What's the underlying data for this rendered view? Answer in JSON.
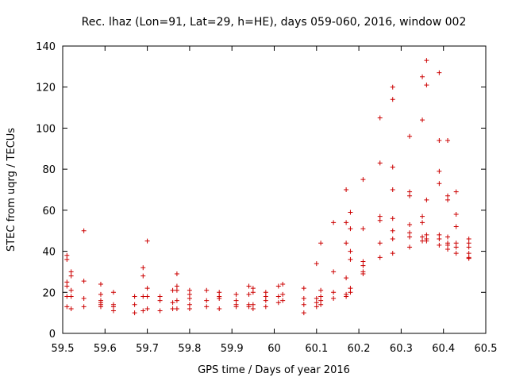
{
  "chart_data": {
    "type": "scatter",
    "title": "Rec. lhaz (Lon=91, Lat=29, h=HE), days 059-060, 2016, window 002",
    "xlabel": "GPS time / Days of year 2016",
    "ylabel": "STEC from uqrg / TECUs",
    "xlim": [
      59.5,
      60.5
    ],
    "ylim": [
      0,
      140
    ],
    "xticks": [
      59.5,
      59.6,
      59.7,
      59.8,
      59.9,
      60.0,
      60.1,
      60.2,
      60.3,
      60.4,
      60.5
    ],
    "xtick_labels": [
      "59.5",
      "59.6",
      "59.7",
      "59.8",
      "59.9",
      "60",
      "60.1",
      "60.2",
      "60.3",
      "60.4",
      "60.5"
    ],
    "yticks": [
      0,
      20,
      40,
      60,
      80,
      100,
      120,
      140
    ],
    "ytick_labels": [
      "0",
      "20",
      "40",
      "60",
      "80",
      "100",
      "120",
      "140"
    ],
    "grid": false,
    "legend": false,
    "marker": "+",
    "color": "#cc0000",
    "series": [
      {
        "points": [
          [
            59.51,
            38
          ],
          [
            59.51,
            36
          ],
          [
            59.51,
            25
          ],
          [
            59.51,
            23
          ],
          [
            59.51,
            18
          ],
          [
            59.51,
            13
          ],
          [
            59.52,
            30
          ],
          [
            59.52,
            28
          ],
          [
            59.52,
            21
          ],
          [
            59.52,
            18
          ],
          [
            59.52,
            12
          ],
          [
            59.55,
            50
          ],
          [
            59.55,
            25.5
          ],
          [
            59.55,
            17
          ],
          [
            59.55,
            13
          ],
          [
            59.59,
            24
          ],
          [
            59.59,
            19
          ],
          [
            59.59,
            16
          ],
          [
            59.59,
            15
          ],
          [
            59.59,
            14
          ],
          [
            59.59,
            13
          ],
          [
            59.62,
            20
          ],
          [
            59.62,
            14
          ],
          [
            59.62,
            13
          ],
          [
            59.62,
            11
          ],
          [
            59.67,
            18
          ],
          [
            59.67,
            14
          ],
          [
            59.67,
            10
          ],
          [
            59.69,
            32
          ],
          [
            59.69,
            28
          ],
          [
            59.69,
            18
          ],
          [
            59.69,
            11
          ],
          [
            59.7,
            45
          ],
          [
            59.7,
            22
          ],
          [
            59.7,
            18
          ],
          [
            59.7,
            12
          ],
          [
            59.73,
            18
          ],
          [
            59.73,
            16
          ],
          [
            59.73,
            11
          ],
          [
            59.76,
            21
          ],
          [
            59.76,
            15
          ],
          [
            59.76,
            12
          ],
          [
            59.77,
            29
          ],
          [
            59.77,
            23
          ],
          [
            59.77,
            21
          ],
          [
            59.77,
            16
          ],
          [
            59.77,
            12
          ],
          [
            59.8,
            21
          ],
          [
            59.8,
            19
          ],
          [
            59.8,
            17
          ],
          [
            59.8,
            14
          ],
          [
            59.8,
            12
          ],
          [
            59.84,
            21
          ],
          [
            59.84,
            16
          ],
          [
            59.84,
            13
          ],
          [
            59.87,
            20
          ],
          [
            59.87,
            18
          ],
          [
            59.87,
            17
          ],
          [
            59.87,
            12
          ],
          [
            59.91,
            19
          ],
          [
            59.91,
            16
          ],
          [
            59.91,
            14
          ],
          [
            59.91,
            13
          ],
          [
            59.94,
            23
          ],
          [
            59.94,
            19
          ],
          [
            59.94,
            14
          ],
          [
            59.94,
            13
          ],
          [
            59.95,
            22
          ],
          [
            59.95,
            20
          ],
          [
            59.95,
            14
          ],
          [
            59.95,
            12
          ],
          [
            59.98,
            20
          ],
          [
            59.98,
            18
          ],
          [
            59.98,
            16
          ],
          [
            59.98,
            13
          ],
          [
            60.01,
            23
          ],
          [
            60.01,
            18
          ],
          [
            60.01,
            15
          ],
          [
            60.02,
            24
          ],
          [
            60.02,
            19
          ],
          [
            60.02,
            16
          ],
          [
            60.07,
            22
          ],
          [
            60.07,
            17
          ],
          [
            60.07,
            14
          ],
          [
            60.07,
            10
          ],
          [
            60.1,
            34
          ],
          [
            60.1,
            17
          ],
          [
            60.1,
            15
          ],
          [
            60.1,
            13
          ],
          [
            60.11,
            44
          ],
          [
            60.11,
            21
          ],
          [
            60.11,
            18
          ],
          [
            60.11,
            16
          ],
          [
            60.11,
            14
          ],
          [
            60.14,
            54
          ],
          [
            60.14,
            30
          ],
          [
            60.14,
            20
          ],
          [
            60.14,
            17
          ],
          [
            60.17,
            70
          ],
          [
            60.17,
            54
          ],
          [
            60.17,
            44
          ],
          [
            60.17,
            27
          ],
          [
            60.17,
            19
          ],
          [
            60.17,
            18
          ],
          [
            60.18,
            59
          ],
          [
            60.18,
            51
          ],
          [
            60.18,
            40
          ],
          [
            60.18,
            36
          ],
          [
            60.18,
            22
          ],
          [
            60.18,
            20
          ],
          [
            60.21,
            75
          ],
          [
            60.21,
            51
          ],
          [
            60.21,
            35
          ],
          [
            60.21,
            33
          ],
          [
            60.21,
            30
          ],
          [
            60.21,
            29
          ],
          [
            60.25,
            105
          ],
          [
            60.25,
            83
          ],
          [
            60.25,
            57
          ],
          [
            60.25,
            55
          ],
          [
            60.25,
            44
          ],
          [
            60.25,
            37
          ],
          [
            60.28,
            120
          ],
          [
            60.28,
            114
          ],
          [
            60.28,
            81
          ],
          [
            60.28,
            70
          ],
          [
            60.28,
            56
          ],
          [
            60.28,
            50
          ],
          [
            60.28,
            46
          ],
          [
            60.28,
            39
          ],
          [
            60.32,
            96
          ],
          [
            60.32,
            69
          ],
          [
            60.32,
            67
          ],
          [
            60.32,
            53
          ],
          [
            60.32,
            49
          ],
          [
            60.32,
            47
          ],
          [
            60.32,
            42
          ],
          [
            60.35,
            125
          ],
          [
            60.35,
            104
          ],
          [
            60.35,
            57
          ],
          [
            60.35,
            54
          ],
          [
            60.35,
            47
          ],
          [
            60.35,
            45
          ],
          [
            60.36,
            133
          ],
          [
            60.36,
            121
          ],
          [
            60.36,
            65
          ],
          [
            60.36,
            48
          ],
          [
            60.36,
            46
          ],
          [
            60.36,
            45
          ],
          [
            60.39,
            127
          ],
          [
            60.39,
            94
          ],
          [
            60.39,
            79
          ],
          [
            60.39,
            73
          ],
          [
            60.39,
            48
          ],
          [
            60.39,
            46
          ],
          [
            60.39,
            43
          ],
          [
            60.41,
            94
          ],
          [
            60.41,
            67
          ],
          [
            60.41,
            65
          ],
          [
            60.41,
            47
          ],
          [
            60.41,
            44
          ],
          [
            60.41,
            43
          ],
          [
            60.41,
            41
          ],
          [
            60.43,
            69
          ],
          [
            60.43,
            58
          ],
          [
            60.43,
            52
          ],
          [
            60.43,
            44
          ],
          [
            60.43,
            42
          ],
          [
            60.43,
            39
          ],
          [
            60.46,
            46
          ],
          [
            60.46,
            44
          ],
          [
            60.46,
            42
          ],
          [
            60.46,
            39
          ],
          [
            60.46,
            37
          ],
          [
            60.46,
            36.5
          ]
        ]
      }
    ]
  }
}
